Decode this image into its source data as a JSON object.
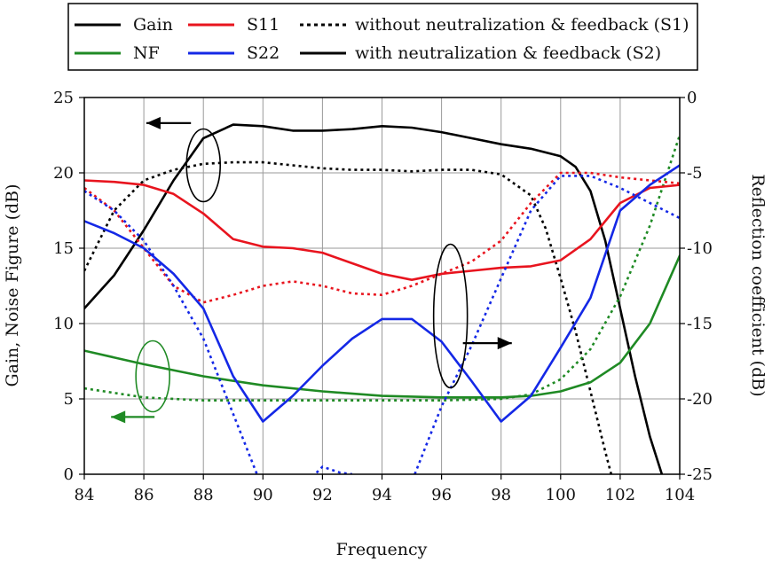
{
  "chart_data": {
    "type": "line",
    "title": "",
    "xlabel": "Frequency",
    "ylabel_left": "Gain, Noise Figure (dB)",
    "ylabel_right": "Reflection coefficient (dB)",
    "xlim": [
      84,
      104
    ],
    "ylim_left": [
      0,
      25
    ],
    "ylim_right": [
      -25,
      0
    ],
    "x_ticks": [
      "84",
      "86",
      "88",
      "90",
      "92",
      "94",
      "96",
      "98",
      "100",
      "102",
      "104"
    ],
    "y_left_ticks": [
      "0",
      "5",
      "10",
      "15",
      "20",
      "25"
    ],
    "y_right_ticks": [
      "-25",
      "-20",
      "-15",
      "-10",
      "-5",
      "0"
    ],
    "grid": true,
    "legend": {
      "position": "top",
      "entries": [
        {
          "label": "Gain",
          "color": "#000000",
          "style": "solid"
        },
        {
          "label": "S11",
          "color": "#e8141e",
          "style": "solid"
        },
        {
          "label": "without neutralization  & feedback (S1)",
          "color": "#000000",
          "style": "dotted"
        },
        {
          "label": "NF",
          "color": "#1f8a24",
          "style": "solid"
        },
        {
          "label": "S22",
          "color": "#1428e6",
          "style": "solid"
        },
        {
          "label": "with neutralization  & feedback (S2)",
          "color": "#000000",
          "style": "solid"
        }
      ]
    },
    "series": [
      {
        "name": "Gain (S2)",
        "axis": "left",
        "color": "#000000",
        "style": "solid",
        "x": [
          84,
          85,
          86,
          87,
          88,
          89,
          90,
          91,
          92,
          93,
          94,
          95,
          96,
          97,
          98,
          99,
          100,
          100.5,
          101,
          101.5,
          102,
          102.5,
          103,
          103.4
        ],
        "y": [
          11.0,
          13.2,
          16.2,
          19.5,
          22.3,
          23.2,
          23.1,
          22.8,
          22.8,
          22.9,
          23.1,
          23.0,
          22.7,
          22.3,
          21.9,
          21.6,
          21.1,
          20.4,
          18.8,
          15.5,
          11.0,
          6.5,
          2.5,
          0.0
        ]
      },
      {
        "name": "Gain (S1)",
        "axis": "left",
        "color": "#000000",
        "style": "dotted",
        "x": [
          84,
          85,
          86,
          87,
          88,
          89,
          90,
          91,
          92,
          93,
          94,
          95,
          96,
          97,
          98,
          99,
          99.5,
          100,
          100.5,
          101,
          101.5,
          101.7
        ],
        "y": [
          13.5,
          17.5,
          19.5,
          20.2,
          20.6,
          20.7,
          20.7,
          20.5,
          20.3,
          20.2,
          20.2,
          20.1,
          20.2,
          20.2,
          19.9,
          18.5,
          16.3,
          13.0,
          9.5,
          5.5,
          1.5,
          0.0
        ]
      },
      {
        "name": "NF (S2)",
        "axis": "left",
        "color": "#1f8a24",
        "style": "solid",
        "x": [
          84,
          86,
          88,
          90,
          92,
          94,
          96,
          98,
          99,
          100,
          101,
          102,
          103,
          104
        ],
        "y": [
          8.2,
          7.3,
          6.5,
          5.9,
          5.5,
          5.2,
          5.1,
          5.1,
          5.2,
          5.5,
          6.1,
          7.4,
          10.0,
          14.5
        ]
      },
      {
        "name": "NF (S1)",
        "axis": "left",
        "color": "#1f8a24",
        "style": "dotted",
        "x": [
          84,
          86,
          88,
          90,
          92,
          94,
          96,
          98,
          99,
          100,
          101,
          102,
          103,
          104
        ],
        "y": [
          5.7,
          5.1,
          4.9,
          4.9,
          4.9,
          4.9,
          4.9,
          5.0,
          5.3,
          6.3,
          8.3,
          11.8,
          16.5,
          22.5
        ]
      },
      {
        "name": "S11 (S2)",
        "axis": "right",
        "color": "#e8141e",
        "style": "solid",
        "x": [
          84,
          85,
          86,
          87,
          88,
          89,
          90,
          91,
          92,
          93,
          94,
          95,
          96,
          97,
          98,
          99,
          100,
          101,
          102,
          103,
          104
        ],
        "y": [
          -5.5,
          -5.6,
          -5.8,
          -6.4,
          -7.7,
          -9.4,
          -9.9,
          -10.0,
          -10.3,
          -11.0,
          -11.7,
          -12.1,
          -11.7,
          -11.5,
          -11.3,
          -11.2,
          -10.8,
          -9.4,
          -7.0,
          -6.0,
          -5.8
        ]
      },
      {
        "name": "S11 (S1)",
        "axis": "right",
        "color": "#e8141e",
        "style": "dotted",
        "x": [
          84,
          85,
          86,
          87,
          88,
          89,
          90,
          91,
          92,
          93,
          94,
          95,
          96,
          97,
          98,
          99,
          100,
          101,
          102,
          103,
          104
        ],
        "y": [
          -6.0,
          -7.5,
          -10.0,
          -12.5,
          -13.6,
          -13.1,
          -12.5,
          -12.2,
          -12.5,
          -13.0,
          -13.1,
          -12.5,
          -11.7,
          -10.9,
          -9.5,
          -7.0,
          -5.0,
          -5.0,
          -5.3,
          -5.5,
          -5.7
        ]
      },
      {
        "name": "S22 (S2)",
        "axis": "right",
        "color": "#1428e6",
        "style": "solid",
        "x": [
          84,
          85,
          86,
          87,
          88,
          89,
          90,
          91,
          92,
          93,
          94,
          95,
          96,
          97,
          98,
          99,
          100,
          101,
          102,
          103,
          104
        ],
        "y": [
          -8.2,
          -9.0,
          -10.0,
          -11.7,
          -14.0,
          -18.5,
          -21.5,
          -19.8,
          -17.8,
          -16.0,
          -14.7,
          -14.7,
          -16.2,
          -18.8,
          -21.5,
          -19.8,
          -16.6,
          -13.3,
          -7.5,
          -5.8,
          -4.5
        ]
      },
      {
        "name": "S22 (S1)",
        "axis": "right",
        "color": "#1428e6",
        "style": "dotted",
        "x": [
          84,
          85,
          86,
          87,
          88,
          89,
          89.8
        ],
        "y": [
          -6.2,
          -7.5,
          -9.5,
          -12.5,
          -16.0,
          -21.0,
          -25.0
        ]
      },
      {
        "name": "S22 (S1) mid",
        "axis": "right",
        "color": "#1428e6",
        "style": "dotted",
        "x": [
          91.8,
          92,
          92.6,
          93.0
        ],
        "y": [
          -24.9,
          -24.5,
          -24.9,
          -25.0
        ]
      },
      {
        "name": "S22 (S1) right",
        "axis": "right",
        "color": "#1428e6",
        "style": "dotted",
        "x": [
          95.1,
          96,
          97,
          98,
          99,
          100,
          101,
          102,
          103,
          104
        ],
        "y": [
          -25.0,
          -20.5,
          -16.5,
          -12.0,
          -7.5,
          -5.2,
          -5.2,
          -6.0,
          -7.0,
          -8.0
        ]
      }
    ],
    "annotations": [
      {
        "type": "ellipse",
        "color": "#000000",
        "x": 88,
        "y": 20.5,
        "axis": "left",
        "arrow": "left"
      },
      {
        "type": "ellipse",
        "color": "#1f8a24",
        "x": 86.3,
        "y": 6.5,
        "axis": "left",
        "arrow": "left"
      },
      {
        "type": "ellipse",
        "color": "#000000",
        "x": 96.3,
        "y": 10.5,
        "axis": "left",
        "arrow": "right"
      }
    ]
  }
}
